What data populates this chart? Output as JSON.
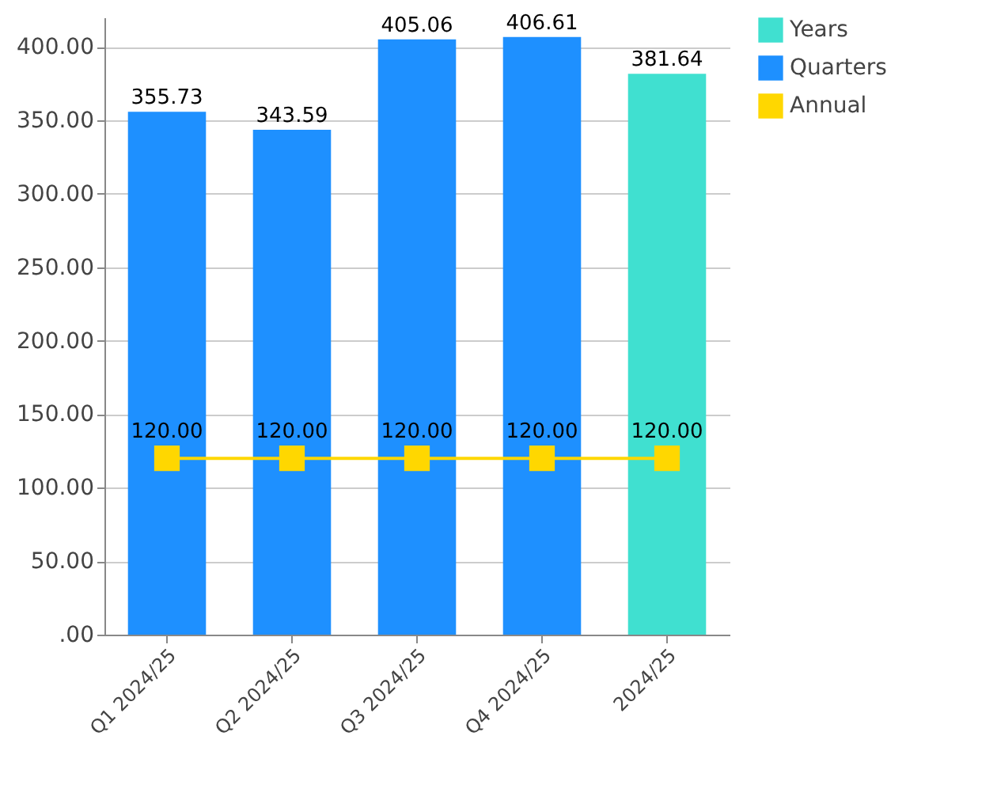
{
  "chart_data": {
    "type": "bar",
    "categories": [
      "Q1 2024/25",
      "Q2 2024/25",
      "Q3 2024/25",
      "Q4 2024/25",
      "2024/25"
    ],
    "series": [
      {
        "name": "Years",
        "color": "#40e0d0",
        "values": [
          null,
          null,
          null,
          null,
          381.64
        ],
        "value_labels": [
          null,
          null,
          null,
          null,
          "381.64"
        ]
      },
      {
        "name": "Quarters",
        "color": "#1e90ff",
        "values": [
          355.73,
          343.59,
          405.06,
          406.61,
          null
        ],
        "value_labels": [
          "355.73",
          "343.59",
          "405.06",
          "406.61",
          null
        ]
      },
      {
        "name": "Annual",
        "type": "line",
        "color": "#ffd700",
        "marker": "square",
        "values": [
          120,
          120,
          120,
          120,
          120
        ],
        "value_labels": [
          "120.00",
          "120.00",
          "120.00",
          "120.00",
          "120.00"
        ]
      }
    ],
    "ylim": [
      0,
      420
    ],
    "yticks": [
      {
        "value": 0,
        "label": ".00"
      },
      {
        "value": 50,
        "label": "50.00"
      },
      {
        "value": 100,
        "label": "100.00"
      },
      {
        "value": 150,
        "label": "150.00"
      },
      {
        "value": 200,
        "label": "200.00"
      },
      {
        "value": 250,
        "label": "250.00"
      },
      {
        "value": 300,
        "label": "300.00"
      },
      {
        "value": 350,
        "label": "350.00"
      },
      {
        "value": 400,
        "label": "400.00"
      }
    ],
    "grid": "y",
    "legend": "right"
  }
}
